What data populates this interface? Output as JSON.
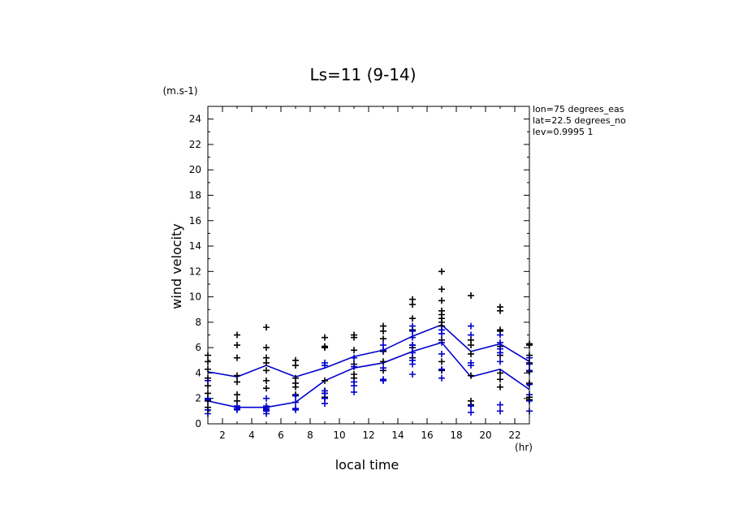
{
  "chart_data": {
    "type": "scatter",
    "title": "Ls=11 (9-14)",
    "xlabel": "local time",
    "ylabel": "wind velocity",
    "x_unit": "(hr)",
    "y_unit": "(m.s-1)",
    "xlim": [
      1,
      23
    ],
    "ylim": [
      0,
      25
    ],
    "x_ticks": [
      2,
      4,
      6,
      8,
      10,
      12,
      14,
      16,
      18,
      20,
      22
    ],
    "y_ticks": [
      0,
      2,
      4,
      6,
      8,
      10,
      12,
      14,
      16,
      18,
      20,
      22,
      24
    ],
    "info": [
      "lon=75 degrees_eas",
      "lat=22.5 degrees_no",
      "lev=0.9995 1"
    ],
    "colors": {
      "black": "#000000",
      "blue": "#0000cc"
    },
    "x": [
      1,
      3,
      5,
      7,
      9,
      11,
      13,
      15,
      17,
      19,
      21,
      23
    ],
    "lines": [
      {
        "values": [
          4.1,
          3.7,
          4.6,
          3.7,
          4.4,
          5.3,
          5.8,
          6.9,
          7.8,
          5.7,
          6.3,
          4.9
        ]
      },
      {
        "values": [
          1.8,
          1.3,
          1.3,
          1.7,
          3.4,
          4.4,
          4.8,
          5.7,
          6.4,
          3.7,
          4.3,
          2.7
        ]
      }
    ],
    "scatter": [
      {
        "color": "black",
        "points": [
          [
            1,
            5.4
          ],
          [
            1,
            4.9
          ],
          [
            1,
            4.3
          ],
          [
            1,
            3.6
          ],
          [
            1,
            3.0
          ],
          [
            1,
            2.4
          ],
          [
            1,
            1.8
          ],
          [
            1,
            1.3
          ],
          [
            3,
            7.0
          ],
          [
            3,
            6.2
          ],
          [
            3,
            5.2
          ],
          [
            3,
            3.8
          ],
          [
            3,
            3.3
          ],
          [
            3,
            2.3
          ],
          [
            3,
            1.8
          ],
          [
            5,
            7.6
          ],
          [
            5,
            6.0
          ],
          [
            5,
            5.2
          ],
          [
            5,
            4.8
          ],
          [
            5,
            4.2
          ],
          [
            5,
            3.4
          ],
          [
            5,
            2.8
          ],
          [
            7,
            5.0
          ],
          [
            7,
            4.6
          ],
          [
            7,
            3.6
          ],
          [
            7,
            3.2
          ],
          [
            7,
            2.9
          ],
          [
            7,
            2.3
          ],
          [
            9,
            6.8
          ],
          [
            9,
            6.1
          ],
          [
            9,
            6.0
          ],
          [
            9,
            3.4
          ],
          [
            9,
            2.6
          ],
          [
            9,
            2.4
          ],
          [
            9,
            2.1
          ],
          [
            11,
            7.0
          ],
          [
            11,
            6.8
          ],
          [
            11,
            5.8
          ],
          [
            11,
            4.7
          ],
          [
            11,
            4.5
          ],
          [
            11,
            3.9
          ],
          [
            11,
            3.6
          ],
          [
            13,
            7.7
          ],
          [
            13,
            7.3
          ],
          [
            13,
            6.7
          ],
          [
            13,
            5.7
          ],
          [
            13,
            4.9
          ],
          [
            13,
            4.2
          ],
          [
            15,
            9.8
          ],
          [
            15,
            9.4
          ],
          [
            15,
            8.3
          ],
          [
            15,
            7.4
          ],
          [
            15,
            6.2
          ],
          [
            15,
            6.0
          ],
          [
            15,
            5.2
          ],
          [
            17,
            12.0
          ],
          [
            17,
            10.6
          ],
          [
            17,
            9.7
          ],
          [
            17,
            8.9
          ],
          [
            17,
            8.6
          ],
          [
            17,
            8.3
          ],
          [
            17,
            8.0
          ],
          [
            17,
            7.7
          ],
          [
            17,
            6.6
          ],
          [
            17,
            4.9
          ],
          [
            17,
            4.2
          ],
          [
            19,
            10.1
          ],
          [
            19,
            6.6
          ],
          [
            19,
            6.2
          ],
          [
            19,
            5.5
          ],
          [
            19,
            3.8
          ],
          [
            19,
            1.8
          ],
          [
            19,
            1.5
          ],
          [
            21,
            9.2
          ],
          [
            21,
            8.9
          ],
          [
            21,
            7.4
          ],
          [
            21,
            7.3
          ],
          [
            21,
            6.1
          ],
          [
            21,
            5.4
          ],
          [
            21,
            4.0
          ],
          [
            21,
            3.5
          ],
          [
            21,
            2.9
          ],
          [
            23,
            6.3
          ],
          [
            23,
            6.2
          ],
          [
            23,
            5.4
          ],
          [
            23,
            4.8
          ],
          [
            23,
            4.1
          ],
          [
            23,
            3.2
          ],
          [
            23,
            2.1
          ],
          [
            23,
            1.9
          ]
        ]
      },
      {
        "color": "blue",
        "points": [
          [
            1,
            3.4
          ],
          [
            1,
            2.0
          ],
          [
            1,
            1.9
          ],
          [
            1,
            1.1
          ],
          [
            1,
            0.8
          ],
          [
            3,
            1.4
          ],
          [
            3,
            1.2
          ],
          [
            3,
            1.1
          ],
          [
            5,
            2.0
          ],
          [
            5,
            1.4
          ],
          [
            5,
            1.2
          ],
          [
            5,
            1.1
          ],
          [
            5,
            1.0
          ],
          [
            5,
            0.8
          ],
          [
            7,
            2.2
          ],
          [
            7,
            1.7
          ],
          [
            7,
            1.2
          ],
          [
            7,
            1.1
          ],
          [
            9,
            4.8
          ],
          [
            9,
            4.6
          ],
          [
            9,
            2.6
          ],
          [
            9,
            2.4
          ],
          [
            9,
            2.0
          ],
          [
            9,
            1.6
          ],
          [
            11,
            5.2
          ],
          [
            11,
            4.5
          ],
          [
            11,
            3.3
          ],
          [
            11,
            3.0
          ],
          [
            11,
            2.5
          ],
          [
            13,
            6.2
          ],
          [
            13,
            5.8
          ],
          [
            13,
            4.4
          ],
          [
            13,
            3.5
          ],
          [
            13,
            3.4
          ],
          [
            15,
            7.7
          ],
          [
            15,
            7.3
          ],
          [
            15,
            6.8
          ],
          [
            15,
            6.2
          ],
          [
            15,
            5.6
          ],
          [
            15,
            5.0
          ],
          [
            15,
            4.7
          ],
          [
            15,
            3.9
          ],
          [
            17,
            7.4
          ],
          [
            17,
            7.1
          ],
          [
            17,
            6.4
          ],
          [
            17,
            5.5
          ],
          [
            17,
            4.3
          ],
          [
            17,
            3.6
          ],
          [
            19,
            7.7
          ],
          [
            19,
            7.0
          ],
          [
            19,
            4.8
          ],
          [
            19,
            4.6
          ],
          [
            19,
            1.4
          ],
          [
            19,
            0.9
          ],
          [
            21,
            7.0
          ],
          [
            21,
            6.4
          ],
          [
            21,
            5.9
          ],
          [
            21,
            5.6
          ],
          [
            21,
            4.9
          ],
          [
            21,
            1.5
          ],
          [
            21,
            1.0
          ],
          [
            23,
            5.2
          ],
          [
            23,
            4.7
          ],
          [
            23,
            4.2
          ],
          [
            23,
            3.1
          ],
          [
            23,
            2.3
          ],
          [
            23,
            1.8
          ],
          [
            23,
            1.0
          ]
        ]
      }
    ]
  }
}
